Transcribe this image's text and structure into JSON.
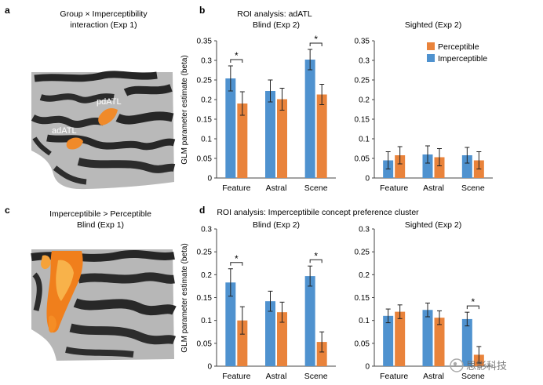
{
  "panel_labels": {
    "a": "a",
    "b": "b",
    "c": "c",
    "d": "d"
  },
  "panel_a": {
    "title_line1": "Group × Imperceptibility",
    "title_line2": "interaction (Exp 1)",
    "label_pdatl": "pdATL",
    "label_adatl": "adATL"
  },
  "panel_c": {
    "title_line1": "Imperceptibile > Perceptible",
    "title_line2": "Blind (Exp 1)"
  },
  "colors": {
    "imperceptible": "#4f92cf",
    "perceptible": "#e9833b",
    "brain_dark": "#2a2a2a",
    "brain_light": "#b5b5b5"
  },
  "chart_data": [
    {
      "type": "bar",
      "title": "ROI analysis: adATL",
      "subtitle": "Blind (Exp 2)",
      "ylabel": "GLM parameter estimate (beta)",
      "ylim": [
        0,
        0.35
      ],
      "yticks": [
        "0",
        "0.05",
        "0.1",
        "0.15",
        "0.2",
        "0.25",
        "0.3",
        "0.35"
      ],
      "categories": [
        "Feature",
        "Astral",
        "Scene"
      ],
      "series": [
        {
          "name": "Imperceptible",
          "values": [
            0.254,
            0.222,
            0.302
          ],
          "err": [
            0.032,
            0.028,
            0.026
          ]
        },
        {
          "name": "Perceptible",
          "values": [
            0.19,
            0.201,
            0.213
          ],
          "err": [
            0.03,
            0.028,
            0.026
          ]
        }
      ],
      "significance": [
        "*",
        "",
        "*"
      ],
      "grid": false
    },
    {
      "type": "bar",
      "subtitle": "Sighted (Exp 2)",
      "ylim": [
        0,
        0.35
      ],
      "yticks": [
        "0",
        "0.05",
        "0.1",
        "0.15",
        "0.2",
        "0.25",
        "0.3",
        "0.35"
      ],
      "categories": [
        "Feature",
        "Astral",
        "Scene"
      ],
      "series": [
        {
          "name": "Imperceptible",
          "values": [
            0.045,
            0.06,
            0.058
          ],
          "err": [
            0.022,
            0.022,
            0.02
          ]
        },
        {
          "name": "Perceptible",
          "values": [
            0.058,
            0.053,
            0.045
          ],
          "err": [
            0.022,
            0.022,
            0.022
          ]
        }
      ],
      "legend": {
        "entries": [
          "Perceptible",
          "Imperceptible"
        ],
        "placement": "top-right"
      },
      "grid": false
    },
    {
      "type": "bar",
      "title": "ROI analysis: Imperceptibile concept preference cluster",
      "subtitle": "Blind (Exp 2)",
      "ylabel": "GLM parameter estimate (beta)",
      "ylim": [
        0,
        0.3
      ],
      "yticks": [
        "0",
        "0.05",
        "0.1",
        "0.15",
        "0.2",
        "0.25",
        "0.3"
      ],
      "categories": [
        "Feature",
        "Astral",
        "Scene"
      ],
      "series": [
        {
          "name": "Imperceptible",
          "values": [
            0.183,
            0.142,
            0.197
          ],
          "err": [
            0.03,
            0.022,
            0.022
          ]
        },
        {
          "name": "Perceptible",
          "values": [
            0.1,
            0.118,
            0.053
          ],
          "err": [
            0.03,
            0.022,
            0.022
          ]
        }
      ],
      "significance": [
        "*",
        "",
        "*"
      ],
      "grid": false
    },
    {
      "type": "bar",
      "subtitle": "Sighted (Exp 2)",
      "ylim": [
        0,
        0.3
      ],
      "yticks": [
        "0",
        "0.05",
        "0.1",
        "0.15",
        "0.2",
        "0.25",
        "0.3"
      ],
      "categories": [
        "Feature",
        "Astral",
        "Scene"
      ],
      "series": [
        {
          "name": "Imperceptible",
          "values": [
            0.11,
            0.123,
            0.103
          ],
          "err": [
            0.015,
            0.015,
            0.015
          ]
        },
        {
          "name": "Perceptible",
          "values": [
            0.119,
            0.106,
            0.025
          ],
          "err": [
            0.015,
            0.015,
            0.018
          ]
        }
      ],
      "significance": [
        "",
        "",
        "*"
      ],
      "grid": false
    }
  ],
  "watermark": "思影科技"
}
